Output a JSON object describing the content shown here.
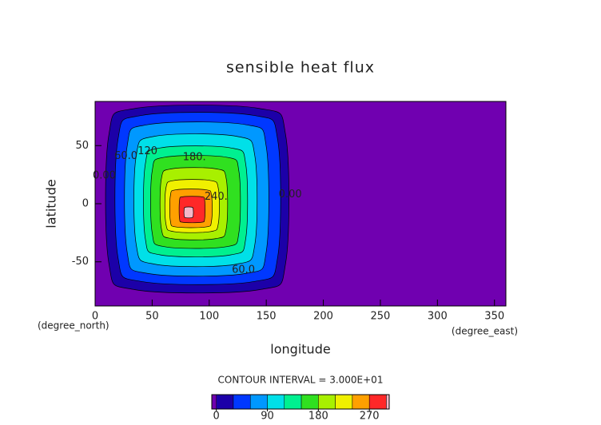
{
  "chart_data": {
    "type": "contour",
    "title": "sensible heat flux",
    "x_label": "longitude",
    "y_label": "latitude",
    "x_unit": "(degree_east)",
    "y_unit": "(degree_north)",
    "contour_interval": "CONTOUR INTERVAL = 3.000E+01",
    "background_color": "#7000b0",
    "xlim": [
      0,
      360
    ],
    "ylim": [
      -88,
      88
    ],
    "xticks": [
      0,
      50,
      100,
      150,
      200,
      250,
      300,
      350
    ],
    "yticks": [
      -50,
      0,
      50
    ],
    "contours": [
      {
        "level": 0,
        "color": "#1c00a8",
        "lon": [
          35,
          144,
          167,
          167,
          144,
          35,
          12,
          12
        ],
        "lat": [
          82,
          82,
          59,
          -51,
          -74,
          -74,
          -51,
          59
        ]
      },
      {
        "level": 30,
        "color": "#0038ff",
        "lon": [
          41,
          139,
          160,
          160,
          139,
          41,
          20,
          20
        ],
        "lat": [
          76,
          76,
          55,
          -46,
          -67,
          -67,
          -46,
          55
        ]
      },
      {
        "level": 60,
        "color": "#0098ff",
        "lon": [
          46,
          132,
          150,
          150,
          132,
          46,
          28,
          28
        ],
        "lat": [
          68,
          68,
          49,
          -41,
          -60,
          -60,
          -41,
          49
        ]
      },
      {
        "level": 90,
        "color": "#00e0e8",
        "lon": [
          52,
          124,
          140,
          140,
          124,
          52,
          36,
          36
        ],
        "lat": [
          58,
          58,
          41,
          -35,
          -52,
          -52,
          -35,
          41
        ]
      },
      {
        "level": 120,
        "color": "#00f090",
        "lon": [
          57,
          119,
          132,
          132,
          119,
          57,
          44,
          44
        ],
        "lat": [
          48,
          48,
          34,
          -30,
          -44,
          -44,
          -30,
          34
        ]
      },
      {
        "level": 150,
        "color": "#30e020",
        "lon": [
          61,
          115,
          126,
          126,
          115,
          61,
          50,
          50
        ],
        "lat": [
          40,
          40,
          28,
          -25,
          -37,
          -37,
          -25,
          28
        ]
      },
      {
        "level": 180,
        "color": "#a8f000",
        "lon": [
          67,
          106,
          115,
          115,
          106,
          67,
          58,
          58
        ],
        "lat": [
          30,
          30,
          21,
          -21,
          -30,
          -30,
          -21,
          21
        ]
      },
      {
        "level": 210,
        "color": "#f0f000",
        "lon": [
          69,
          101,
          108,
          108,
          101,
          69,
          62,
          62
        ],
        "lat": [
          20,
          20,
          13,
          -17,
          -24,
          -24,
          -17,
          13
        ]
      },
      {
        "level": 240,
        "color": "#ffa000",
        "lon": [
          71,
          97,
          102,
          102,
          97,
          71,
          66,
          66
        ],
        "lat": [
          12,
          12,
          7,
          -15,
          -20,
          -20,
          -15,
          7
        ]
      },
      {
        "level": 270,
        "color": "#ff2828",
        "lon": [
          77,
          93,
          96,
          96,
          93,
          77,
          74,
          74
        ],
        "lat": [
          6,
          6,
          3,
          -13,
          -16,
          -16,
          -13,
          3
        ]
      },
      {
        "level": 300,
        "color": "#f4b8c8",
        "lon": [
          79,
          85,
          86,
          86,
          85,
          79,
          78,
          78
        ],
        "lat": [
          -3,
          -3,
          -5,
          -10,
          -12,
          -12,
          -10,
          -5
        ]
      }
    ],
    "contour_labels": [
      {
        "text": "0.00",
        "lon": 8,
        "lat": 24
      },
      {
        "text": "60.0",
        "lon": 27,
        "lat": 41
      },
      {
        "text": "120",
        "lon": 46,
        "lat": 45
      },
      {
        "text": "180.",
        "lon": 87,
        "lat": 40
      },
      {
        "text": "240.",
        "lon": 106,
        "lat": 6
      },
      {
        "text": "60.0",
        "lon": 130,
        "lat": -57
      },
      {
        "text": "0.00",
        "lon": 171,
        "lat": 8
      }
    ],
    "colorbar": {
      "lim": [
        -8,
        305
      ],
      "ticks": [
        0,
        90,
        180,
        270
      ]
    }
  }
}
